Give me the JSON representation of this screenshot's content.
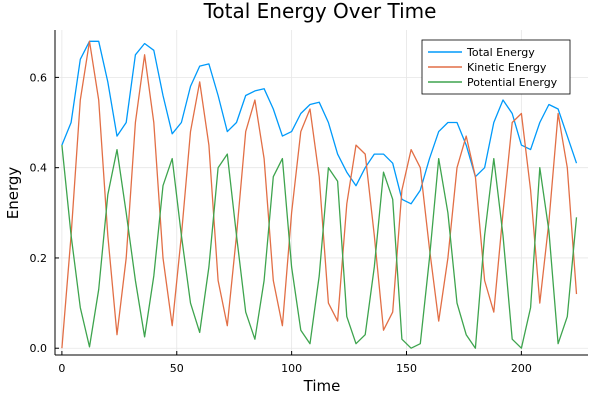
{
  "chart_data": {
    "type": "line",
    "title": "Total Energy Over Time",
    "xlabel": "Time",
    "ylabel": "Energy",
    "xlim": [
      -3,
      229
    ],
    "ylim": [
      -0.015,
      0.705
    ],
    "xticks": [
      0,
      50,
      100,
      150,
      200
    ],
    "yticks": [
      0.0,
      0.2,
      0.4,
      0.6
    ],
    "xtick_labels": [
      "0",
      "50",
      "100",
      "150",
      "200"
    ],
    "ytick_labels": [
      "0.0",
      "0.2",
      "0.4",
      "0.6"
    ],
    "grid": true,
    "legend_position": "top-right",
    "series": [
      {
        "name": "Total Energy",
        "color": "#009AFA",
        "x": [
          0,
          4,
          8,
          12,
          16,
          20,
          24,
          28,
          32,
          36,
          40,
          44,
          48,
          52,
          56,
          60,
          64,
          68,
          72,
          76,
          80,
          84,
          88,
          92,
          96,
          100,
          104,
          108,
          112,
          116,
          120,
          124,
          128,
          132,
          136,
          140,
          144,
          148,
          152,
          156,
          160,
          164,
          168,
          172,
          176,
          180,
          184,
          188,
          192,
          196,
          200,
          204,
          208,
          212,
          216,
          220,
          224
        ],
        "values": [
          0.45,
          0.5,
          0.64,
          0.68,
          0.68,
          0.59,
          0.47,
          0.5,
          0.65,
          0.675,
          0.66,
          0.56,
          0.475,
          0.5,
          0.58,
          0.625,
          0.63,
          0.56,
          0.48,
          0.5,
          0.56,
          0.57,
          0.575,
          0.53,
          0.47,
          0.48,
          0.52,
          0.54,
          0.545,
          0.5,
          0.43,
          0.39,
          0.36,
          0.4,
          0.43,
          0.43,
          0.41,
          0.33,
          0.32,
          0.35,
          0.42,
          0.48,
          0.5,
          0.5,
          0.45,
          0.38,
          0.4,
          0.5,
          0.55,
          0.52,
          0.45,
          0.44,
          0.5,
          0.54,
          0.53,
          0.47,
          0.41
        ]
      },
      {
        "name": "Kinetic Energy",
        "color": "#E26F46",
        "x": [
          0,
          4,
          8,
          12,
          16,
          20,
          24,
          28,
          32,
          36,
          40,
          44,
          48,
          52,
          56,
          60,
          64,
          68,
          72,
          76,
          80,
          84,
          88,
          92,
          96,
          100,
          104,
          108,
          112,
          116,
          120,
          124,
          128,
          132,
          136,
          140,
          144,
          148,
          152,
          156,
          160,
          164,
          168,
          172,
          176,
          180,
          184,
          188,
          192,
          196,
          200,
          204,
          208,
          212,
          216,
          220,
          224
        ],
        "values": [
          0.0,
          0.25,
          0.55,
          0.68,
          0.55,
          0.25,
          0.03,
          0.2,
          0.5,
          0.65,
          0.5,
          0.2,
          0.05,
          0.25,
          0.48,
          0.59,
          0.45,
          0.15,
          0.05,
          0.25,
          0.48,
          0.55,
          0.42,
          0.15,
          0.05,
          0.3,
          0.48,
          0.53,
          0.38,
          0.1,
          0.06,
          0.32,
          0.45,
          0.43,
          0.25,
          0.04,
          0.08,
          0.35,
          0.44,
          0.4,
          0.22,
          0.06,
          0.2,
          0.4,
          0.47,
          0.38,
          0.15,
          0.08,
          0.3,
          0.5,
          0.52,
          0.35,
          0.1,
          0.28,
          0.52,
          0.4,
          0.12
        ]
      },
      {
        "name": "Potential Energy",
        "color": "#3EA44E",
        "x": [
          0,
          4,
          8,
          12,
          16,
          20,
          24,
          28,
          32,
          36,
          40,
          44,
          48,
          52,
          56,
          60,
          64,
          68,
          72,
          76,
          80,
          84,
          88,
          92,
          96,
          100,
          104,
          108,
          112,
          116,
          120,
          124,
          128,
          132,
          136,
          140,
          144,
          148,
          152,
          156,
          160,
          164,
          168,
          172,
          176,
          180,
          184,
          188,
          192,
          196,
          200,
          204,
          208,
          212,
          216,
          220,
          224
        ],
        "values": [
          0.45,
          0.25,
          0.09,
          0.003,
          0.13,
          0.34,
          0.44,
          0.3,
          0.15,
          0.025,
          0.16,
          0.36,
          0.42,
          0.25,
          0.1,
          0.035,
          0.18,
          0.4,
          0.43,
          0.25,
          0.08,
          0.02,
          0.15,
          0.38,
          0.42,
          0.18,
          0.04,
          0.01,
          0.16,
          0.4,
          0.37,
          0.07,
          0.01,
          0.03,
          0.18,
          0.39,
          0.33,
          0.02,
          0.0,
          0.01,
          0.2,
          0.42,
          0.3,
          0.1,
          0.03,
          0.0,
          0.25,
          0.42,
          0.25,
          0.02,
          0.0,
          0.09,
          0.4,
          0.26,
          0.01,
          0.07,
          0.29
        ]
      }
    ]
  }
}
